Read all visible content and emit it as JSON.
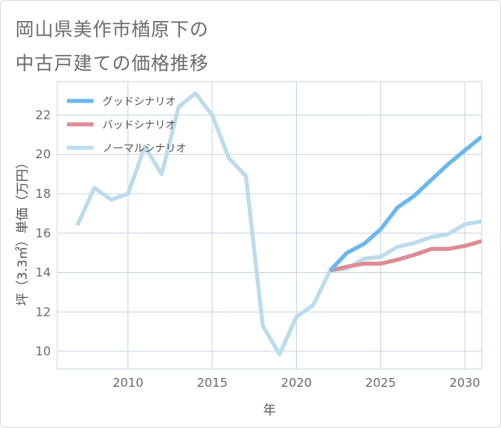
{
  "title_lines": [
    "岡山県美作市楢原下の",
    "中古戸建ての価格推移"
  ],
  "colors": {
    "good": "#6ab8ee",
    "bad": "#dd8c93",
    "normal": "#bcdcec",
    "grid": "#c7d5e0",
    "plot_bg": "#ffffff",
    "text": "#6b6b6b"
  },
  "chart_data": {
    "type": "line",
    "title": "岡山県美作市楢原下の中古戸建ての価格推移",
    "xlabel": "年",
    "ylabel": "坪（3.3㎡）単価（万円）",
    "xlim": [
      2005.8,
      2031
    ],
    "ylim": [
      9.1,
      23.7
    ],
    "xticks": [
      2010,
      2015,
      2020,
      2025,
      2030
    ],
    "yticks": [
      10,
      12,
      14,
      16,
      18,
      20,
      22
    ],
    "grid": true,
    "legend_position": "top-left",
    "series": [
      {
        "name": "グッドシナリオ",
        "color_key": "good",
        "x": [
          2022,
          2023,
          2024,
          2025,
          2026,
          2027,
          2028,
          2029,
          2030,
          2031
        ],
        "y": [
          14.1,
          15.0,
          15.45,
          16.2,
          17.3,
          17.9,
          18.7,
          19.5,
          20.2,
          20.9
        ]
      },
      {
        "name": "バッドシナリオ",
        "color_key": "bad",
        "x": [
          2022,
          2023,
          2024,
          2025,
          2026,
          2027,
          2028,
          2029,
          2030,
          2031
        ],
        "y": [
          14.1,
          14.3,
          14.45,
          14.45,
          14.65,
          14.9,
          15.2,
          15.2,
          15.35,
          15.6
        ]
      },
      {
        "name": "ノーマルシナリオ",
        "color_key": "normal",
        "x": [
          2007,
          2008,
          2009,
          2010,
          2011,
          2012,
          2013,
          2014,
          2015,
          2016,
          2017,
          2018,
          2019,
          2020,
          2021,
          2022,
          2023,
          2024,
          2025,
          2026,
          2027,
          2028,
          2029,
          2030,
          2031
        ],
        "y": [
          16.4,
          18.3,
          17.7,
          18.0,
          20.4,
          19.0,
          22.4,
          23.1,
          22.0,
          19.8,
          18.9,
          11.3,
          9.85,
          11.75,
          12.35,
          14.1,
          14.2,
          14.7,
          14.8,
          15.3,
          15.5,
          15.8,
          15.95,
          16.45,
          16.6
        ]
      }
    ]
  }
}
